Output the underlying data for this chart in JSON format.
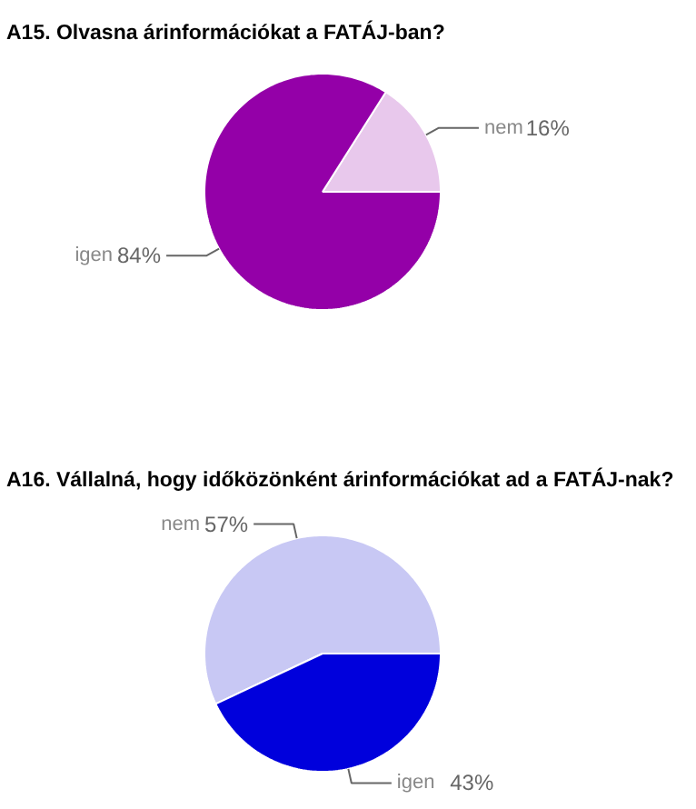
{
  "chart_data": [
    {
      "type": "pie",
      "title": "A15. Olvasna árinformációkat a FATÁJ-ban?",
      "categories": [
        "nem",
        "igen"
      ],
      "values": [
        16,
        84
      ],
      "value_labels": [
        "16%",
        "84%"
      ],
      "colors": [
        "#e8c8ec",
        "#9400a8"
      ]
    },
    {
      "type": "pie",
      "title": "A16. Vállalná, hogy időközönként árinformációkat ad a FATÁJ-nak?",
      "categories": [
        "nem",
        "igen"
      ],
      "values": [
        57,
        43
      ],
      "value_labels": [
        "57%",
        "43%"
      ],
      "colors": [
        "#c8c8f4",
        "#0000dc"
      ]
    }
  ]
}
